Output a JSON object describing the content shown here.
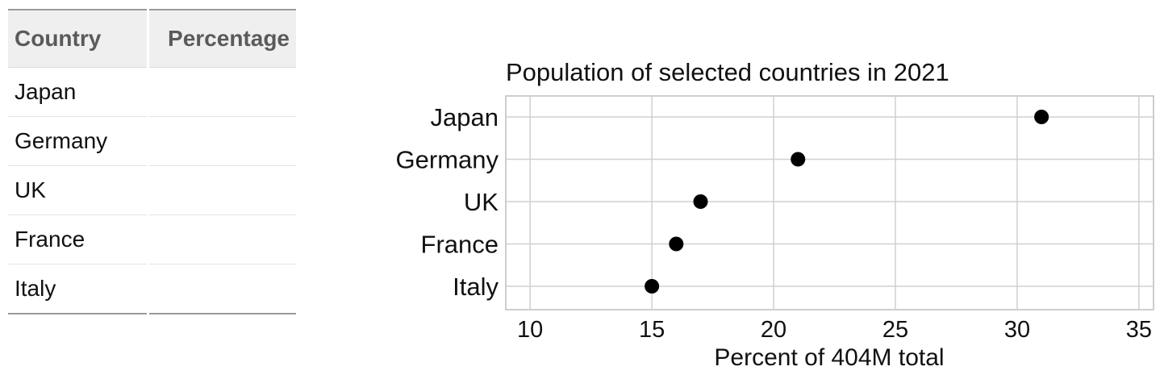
{
  "table": {
    "headers": {
      "country": "Country",
      "percentage": "Percentage"
    },
    "rows": [
      {
        "country": "Japan",
        "percentage": ""
      },
      {
        "country": "Germany",
        "percentage": ""
      },
      {
        "country": "UK",
        "percentage": ""
      },
      {
        "country": "France",
        "percentage": ""
      },
      {
        "country": "Italy",
        "percentage": ""
      }
    ]
  },
  "chart_data": {
    "type": "scatter",
    "title": "Population of selected countries in 2021",
    "xlabel": "Percent of 404M total",
    "ylabel": "",
    "categories": [
      "Japan",
      "Germany",
      "UK",
      "France",
      "Italy"
    ],
    "values": [
      31,
      21,
      17,
      16,
      15
    ],
    "xlim": [
      9,
      35.6
    ],
    "xticks": [
      10,
      15,
      20,
      25,
      30,
      35
    ],
    "grid": true,
    "legend": "none",
    "point_color": "#000000"
  }
}
